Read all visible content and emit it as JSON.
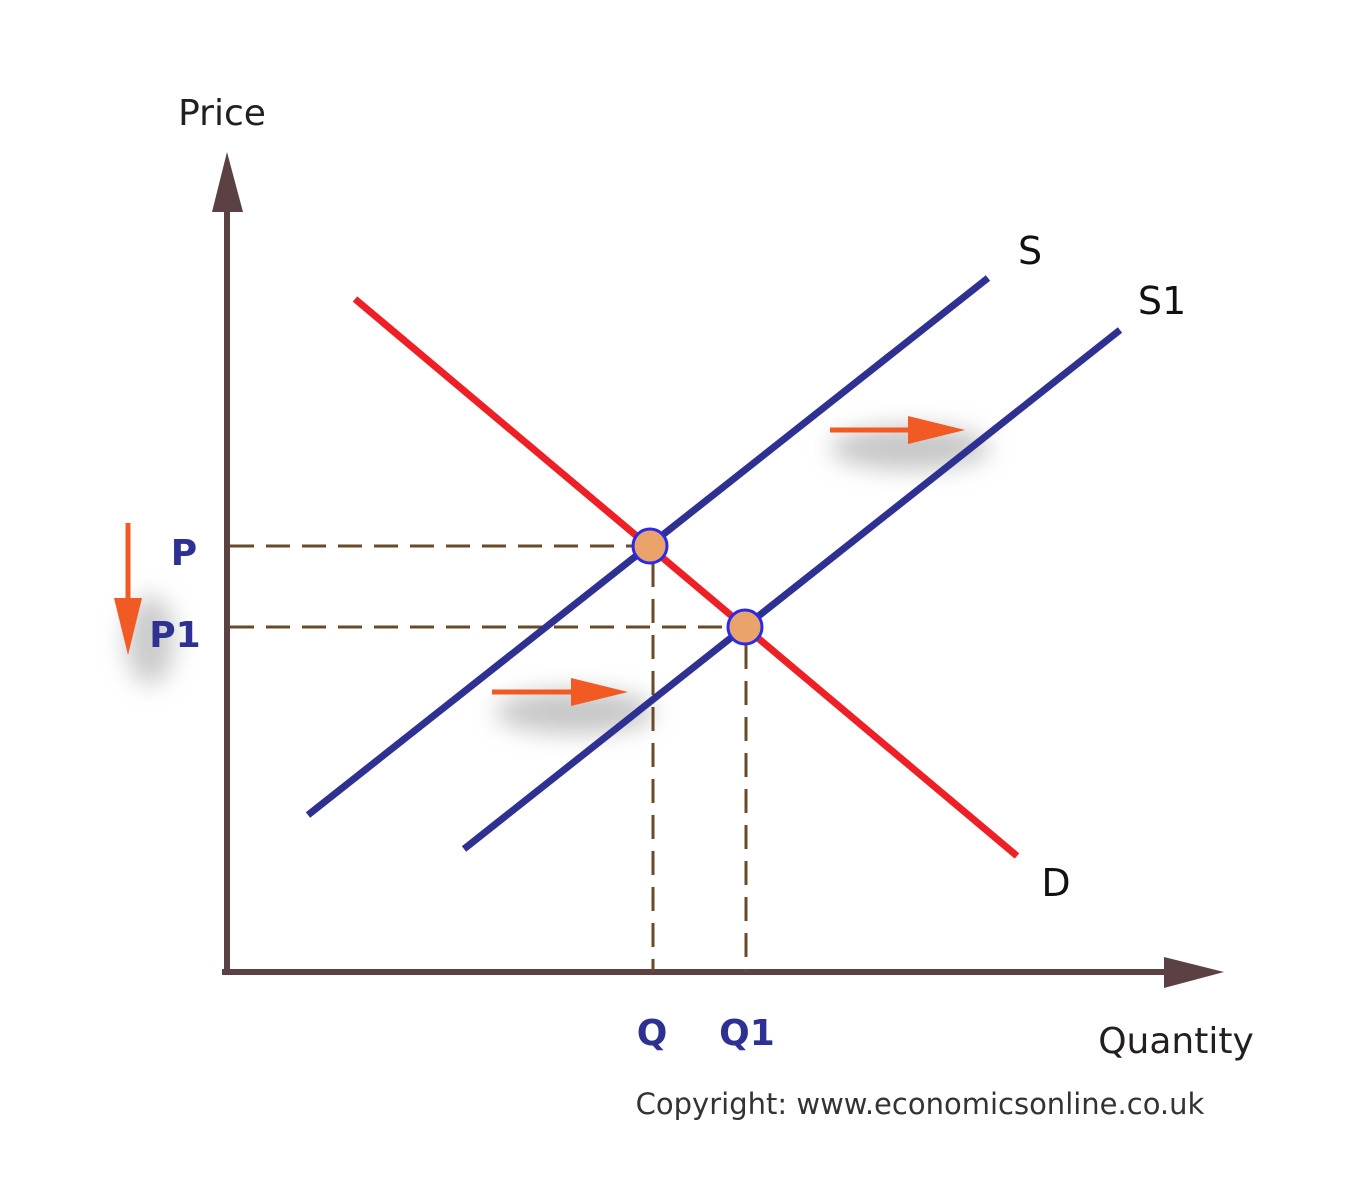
{
  "diagram": {
    "type": "supply-demand",
    "axes": {
      "y_label": "Price",
      "x_label": "Quantity"
    },
    "curves": [
      {
        "id": "S",
        "label": "S",
        "kind": "supply",
        "color": "#2e3192"
      },
      {
        "id": "S1",
        "label": "S1",
        "kind": "supply-shifted-right",
        "color": "#2e3192"
      },
      {
        "id": "D",
        "label": "D",
        "kind": "demand",
        "color": "#ee2026"
      }
    ],
    "price_labels": {
      "p": "P",
      "p1": "P1"
    },
    "quantity_labels": {
      "q": "Q",
      "q1": "Q1"
    },
    "equilibria": [
      {
        "name": "original",
        "price": "P",
        "quantity": "Q"
      },
      {
        "name": "new",
        "price": "P1",
        "quantity": "Q1"
      }
    ],
    "shift_arrow_color": "#f15a22",
    "equilibrium_dot_color": "#eaa36a",
    "copyright": "Copyright: www.economicsonline.co.uk"
  }
}
